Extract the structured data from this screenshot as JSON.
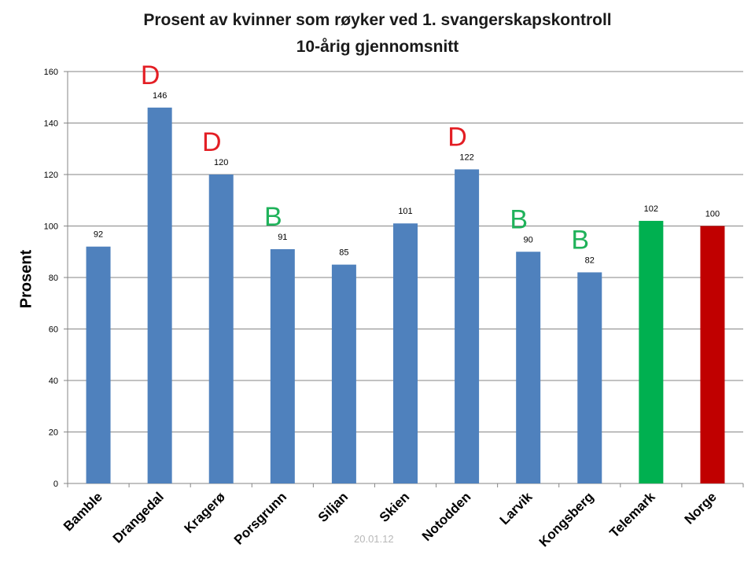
{
  "chart_data": {
    "type": "bar",
    "title": [
      "Prosent  av kvinner som røyker ved 1. svangerskapskontroll",
      "10-årig gjennomsnitt"
    ],
    "ylabel": "Prosent",
    "xlabel": "",
    "ylim": [
      0,
      160
    ],
    "yticks": [
      0,
      20,
      40,
      60,
      80,
      100,
      120,
      140,
      160
    ],
    "grid": true,
    "categories": [
      "Bamble",
      "Drangedal",
      "Kragerø",
      "Porsgrunn",
      "Siljan",
      "Skien",
      "Notodden",
      "Larvik",
      "Kongsberg",
      "Telemark",
      "Norge"
    ],
    "values": [
      92,
      146,
      120,
      91,
      85,
      101,
      122,
      90,
      82,
      102,
      100
    ],
    "data_labels": [
      "92",
      "146",
      "120",
      "91",
      "85",
      "101",
      "122",
      "90",
      "82",
      "102",
      "100"
    ],
    "bar_colors": [
      "#4f81bd",
      "#4f81bd",
      "#4f81bd",
      "#4f81bd",
      "#4f81bd",
      "#4f81bd",
      "#4f81bd",
      "#4f81bd",
      "#4f81bd",
      "#00b050",
      "#c00000"
    ],
    "annotations": [
      {
        "category": "Drangedal",
        "text": "D",
        "color": "#e31e24"
      },
      {
        "category": "Kragerø",
        "text": "D",
        "color": "#e31e24"
      },
      {
        "category": "Notodden",
        "text": "D",
        "color": "#e31e24"
      },
      {
        "category": "Porsgrunn",
        "text": "B",
        "color": "#1fb25a"
      },
      {
        "category": "Larvik",
        "text": "B",
        "color": "#1fb25a"
      },
      {
        "category": "Kongsberg",
        "text": "B",
        "color": "#1fb25a"
      }
    ]
  },
  "footer": "20.01.12"
}
